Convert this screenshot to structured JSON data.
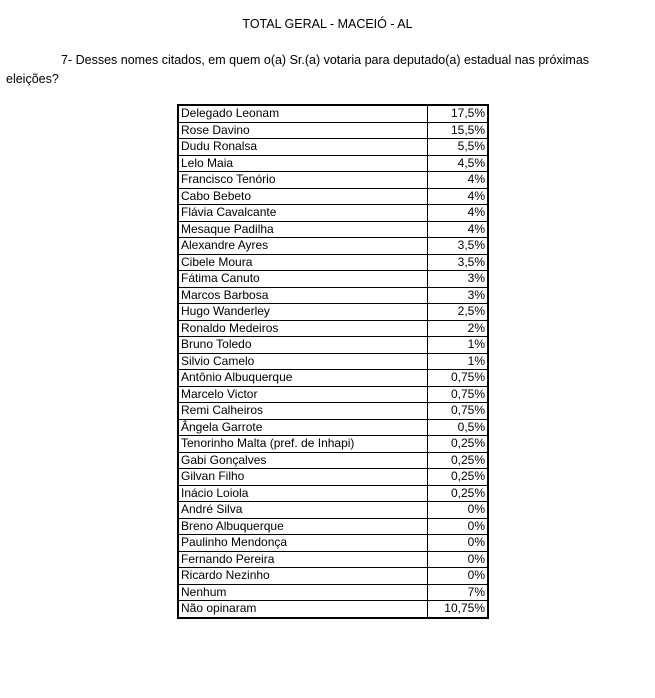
{
  "document": {
    "title": "TOTAL GERAL - MACEIÓ - AL",
    "question": "7- Desses nomes citados, em quem o(a) Sr.(a) votaria para deputado(a) estadual nas próximas eleições?"
  },
  "table": {
    "rows": [
      {
        "name": "Delegado Leonam",
        "value": "17,5%"
      },
      {
        "name": "Rose Davino",
        "value": "15,5%"
      },
      {
        "name": "Dudu Ronalsa",
        "value": "5,5%"
      },
      {
        "name": "Lelo Maia",
        "value": "4,5%"
      },
      {
        "name": "Francisco Tenório",
        "value": "4%"
      },
      {
        "name": "Cabo Bebeto",
        "value": "4%"
      },
      {
        "name": "Flávia Cavalcante",
        "value": "4%"
      },
      {
        "name": "Mesaque Padilha",
        "value": "4%"
      },
      {
        "name": "Alexandre Ayres",
        "value": "3,5%"
      },
      {
        "name": "Cibele Moura",
        "value": "3,5%"
      },
      {
        "name": "Fátima Canuto",
        "value": "3%"
      },
      {
        "name": "Marcos Barbosa",
        "value": "3%"
      },
      {
        "name": "Hugo Wanderley",
        "value": "2,5%"
      },
      {
        "name": "Ronaldo Medeiros",
        "value": "2%"
      },
      {
        "name": "Bruno Toledo",
        "value": "1%"
      },
      {
        "name": "Silvio Camelo",
        "value": "1%"
      },
      {
        "name": "Antônio Albuquerque",
        "value": "0,75%"
      },
      {
        "name": "Marcelo Victor",
        "value": "0,75%"
      },
      {
        "name": "Remi Calheiros",
        "value": "0,75%"
      },
      {
        "name": "Ângela Garrote",
        "value": "0,5%"
      },
      {
        "name": "Tenorinho Malta (pref. de Inhapi)",
        "value": "0,25%"
      },
      {
        "name": "Gabi Gonçalves",
        "value": "0,25%"
      },
      {
        "name": "Gilvan Filho",
        "value": "0,25%"
      },
      {
        "name": "Inácio Loiola",
        "value": "0,25%"
      },
      {
        "name": "André Silva",
        "value": "0%"
      },
      {
        "name": "Breno Albuquerque",
        "value": "0%"
      },
      {
        "name": "Paulinho Mendonça",
        "value": "0%"
      },
      {
        "name": "Fernando Pereira",
        "value": "0%"
      },
      {
        "name": "Ricardo Nezinho",
        "value": "0%"
      },
      {
        "name": "Nenhum",
        "value": "7%"
      },
      {
        "name": "Não opinaram",
        "value": "10,75%"
      }
    ]
  }
}
